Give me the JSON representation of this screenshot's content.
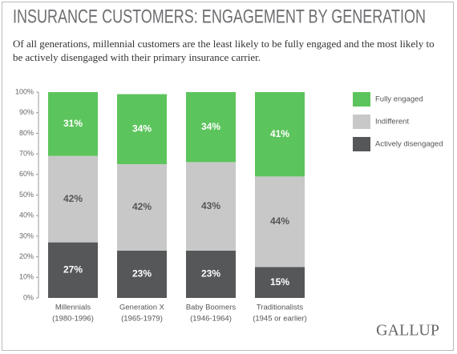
{
  "chart_data": {
    "type": "stacked_bar",
    "title": "INSURANCE CUSTOMERS: ENGAGEMENT BY GENERATION",
    "subtitle": "Of all generations, millennial customers are the least likely to be fully engaged and the most likely to be actively disengaged with their primary insurance carrier.",
    "categories": [
      "Millennials",
      "Generation X",
      "Baby Boomers",
      "Traditionalists"
    ],
    "category_years": [
      "(1980-1996)",
      "(1965-1979)",
      "(1946-1964)",
      "(1945 or earlier)"
    ],
    "series": [
      {
        "name": "Actively disengaged",
        "color": "#555759",
        "label_color": "#ffffff",
        "values": [
          27,
          23,
          23,
          15
        ],
        "value_labels": [
          "27%",
          "23%",
          "23%",
          "15%"
        ]
      },
      {
        "name": "Indifferent",
        "color": "#c8c8c8",
        "label_color": "#555555",
        "values": [
          42,
          42,
          43,
          44
        ],
        "value_labels": [
          "42%",
          "42%",
          "43%",
          "44%"
        ]
      },
      {
        "name": "Fully engaged",
        "color": "#5cc45c",
        "label_color": "#ffffff",
        "values": [
          31,
          34,
          34,
          41
        ],
        "value_labels": [
          "31%",
          "34%",
          "34%",
          "41%"
        ]
      }
    ],
    "ylim": [
      0,
      100
    ],
    "yticks": [
      {
        "value": 0,
        "label": "0%"
      },
      {
        "value": 10,
        "label": "10%"
      },
      {
        "value": 20,
        "label": "20%"
      },
      {
        "value": 30,
        "label": "30%"
      },
      {
        "value": 40,
        "label": "40%"
      },
      {
        "value": 50,
        "label": "50%"
      },
      {
        "value": 60,
        "label": "60%"
      },
      {
        "value": 70,
        "label": "70%"
      },
      {
        "value": 80,
        "label": "80%"
      },
      {
        "value": 90,
        "label": "90%"
      },
      {
        "value": 100,
        "label": "100%"
      }
    ],
    "legend_position": "right",
    "brand": "GALLUP"
  }
}
